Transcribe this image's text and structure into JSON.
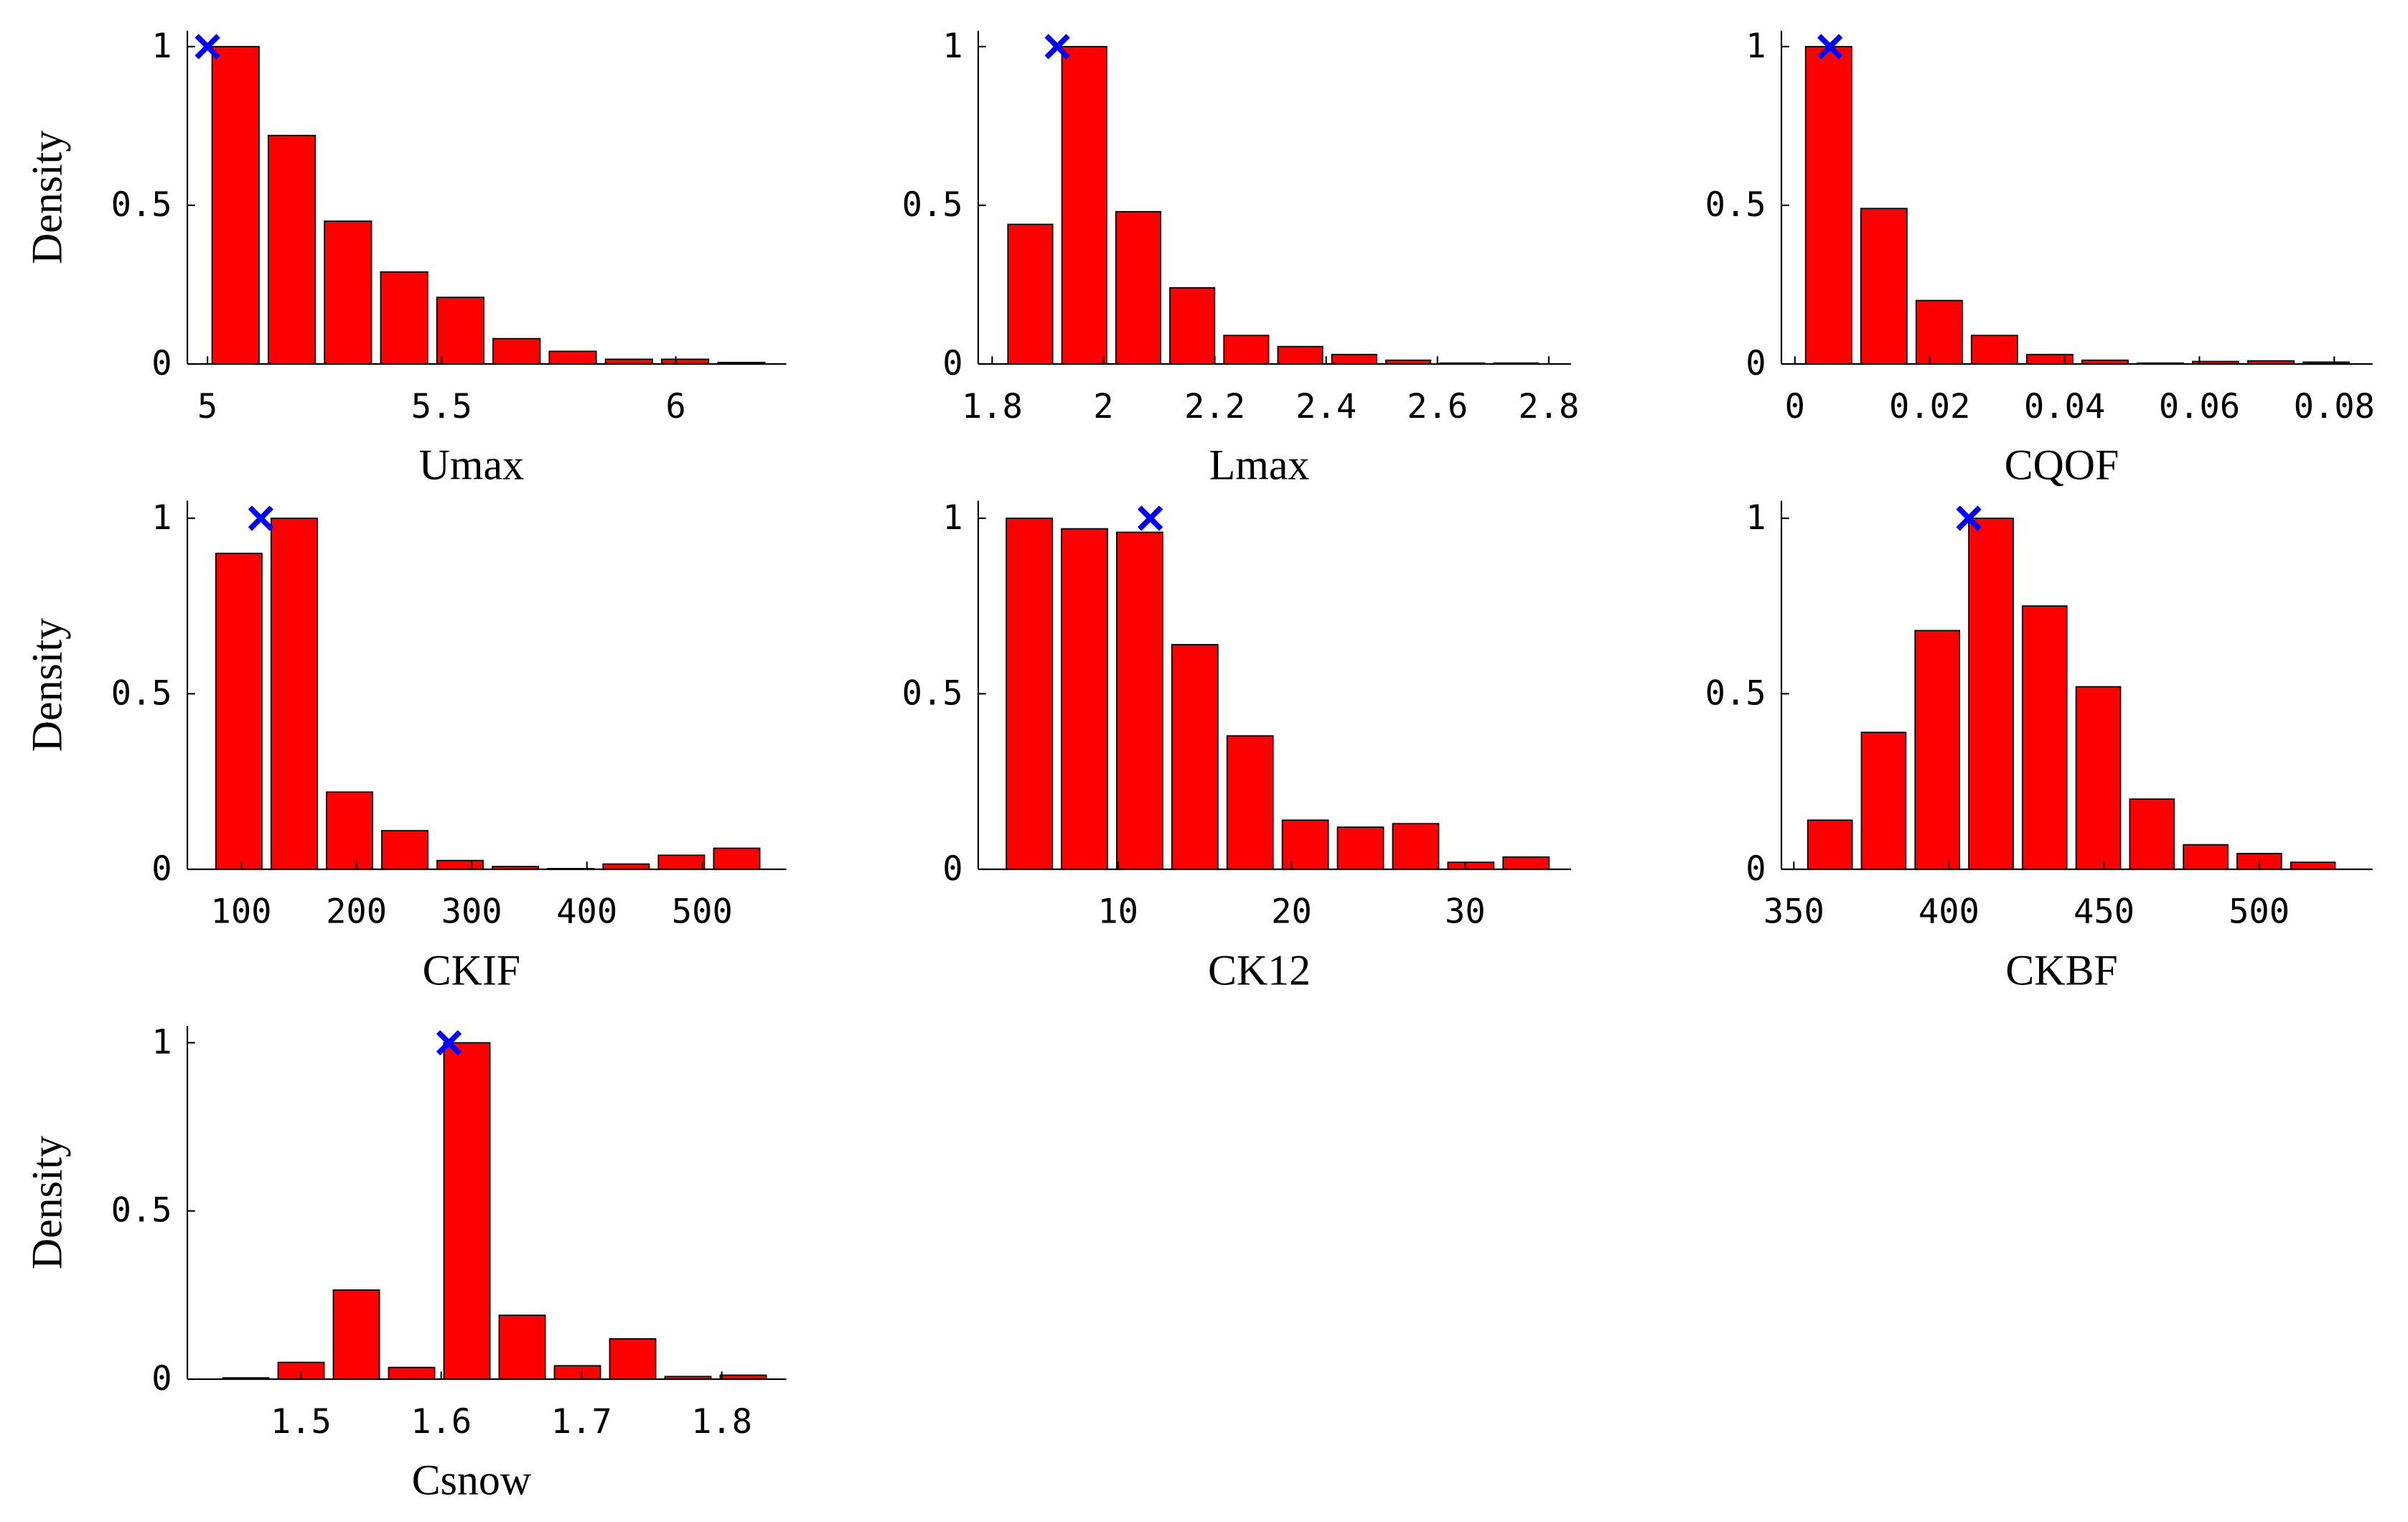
{
  "chart_data": [
    {
      "type": "histogram",
      "xlabel": "Umax",
      "ylabel": "Density",
      "color": "#ff0000",
      "marker_color": "#0000ff",
      "bins": [
        5,
        5.12,
        5.24,
        5.36,
        5.48,
        5.6,
        5.72,
        5.84,
        5.96,
        6.08,
        6.2
      ],
      "values": [
        1,
        0.72,
        0.45,
        0.29,
        0.21,
        0.08,
        0.04,
        0.015,
        0.015,
        0.005
      ],
      "marker": {
        "x": 5,
        "y": 1
      },
      "xlim": [
        4.957,
        6.236
      ],
      "ylim": [
        0,
        1.05
      ],
      "xticks": [
        5,
        5.5,
        6
      ],
      "yticks": [
        0,
        0.5,
        1
      ]
    },
    {
      "type": "histogram",
      "xlabel": "Lmax",
      "color": "#ff0000",
      "marker_color": "#0000ff",
      "bins": [
        1.82,
        1.917,
        2.014,
        2.111,
        2.208,
        2.305,
        2.402,
        2.499,
        2.596,
        2.693,
        2.79
      ],
      "values": [
        0.44,
        1,
        0.48,
        0.24,
        0.09,
        0.055,
        0.03,
        0.012,
        0.003,
        0.003
      ],
      "marker": {
        "x": 1.917,
        "y": 1
      },
      "xlim": [
        1.775,
        2.84
      ],
      "ylim": [
        0,
        1.05
      ],
      "xticks": [
        1.8,
        2,
        2.2,
        2.4,
        2.6,
        2.8
      ],
      "yticks": [
        0,
        0.5,
        1
      ]
    },
    {
      "type": "histogram",
      "xlabel": "CQOF",
      "color": "#ff0000",
      "marker_color": "#0000ff",
      "bins": [
        0.0009,
        0.0091,
        0.0173,
        0.0255,
        0.0337,
        0.0419,
        0.0501,
        0.0583,
        0.0665,
        0.0747,
        0.0829
      ],
      "values": [
        1,
        0.49,
        0.2,
        0.09,
        0.03,
        0.012,
        0.003,
        0.008,
        0.01,
        0.006
      ],
      "marker": {
        "x": 0.0052,
        "y": 1
      },
      "xlim": [
        -0.002,
        0.0857
      ],
      "ylim": [
        0,
        1.05
      ],
      "xticks": [
        0,
        0.02,
        0.04,
        0.06,
        0.08
      ],
      "yticks": [
        0,
        0.5,
        1
      ]
    },
    {
      "type": "histogram",
      "xlabel": "CKIF",
      "ylabel": "Density",
      "color": "#ff0000",
      "marker_color": "#0000ff",
      "bins": [
        74,
        122,
        170,
        218,
        266,
        314,
        362,
        410,
        458,
        506,
        554
      ],
      "values": [
        0.9,
        1,
        0.22,
        0.11,
        0.025,
        0.008,
        0.002,
        0.015,
        0.04,
        0.06
      ],
      "marker": {
        "x": 117,
        "y": 1
      },
      "xlim": [
        53.3,
        573
      ],
      "ylim": [
        0,
        1.05
      ],
      "xticks": [
        100,
        200,
        300,
        400,
        500
      ],
      "yticks": [
        0,
        0.5,
        1
      ]
    },
    {
      "type": "histogram",
      "xlabel": "CK12",
      "color": "#ff0000",
      "marker_color": "#0000ff",
      "bins": [
        3.3,
        6.48,
        9.66,
        12.84,
        16.02,
        19.2,
        22.38,
        25.56,
        28.74,
        31.92,
        35.1
      ],
      "values": [
        1,
        0.97,
        0.96,
        0.64,
        0.38,
        0.14,
        0.12,
        0.13,
        0.02,
        0.035
      ],
      "marker": {
        "x": 11.86,
        "y": 1
      },
      "xlim": [
        1.95,
        36.1
      ],
      "ylim": [
        0,
        1.05
      ],
      "xticks": [
        10,
        20,
        30
      ],
      "yticks": [
        0,
        0.5,
        1
      ]
    },
    {
      "type": "histogram",
      "xlabel": "CKBF",
      "color": "#ff0000",
      "marker_color": "#0000ff",
      "bins": [
        353,
        370.3,
        387.6,
        404.9,
        422.2,
        439.5,
        456.8,
        474.1,
        491.4,
        508.7,
        526
      ],
      "values": [
        0.14,
        0.39,
        0.68,
        1,
        0.75,
        0.52,
        0.2,
        0.07,
        0.045,
        0.02
      ],
      "marker": {
        "x": 406.4,
        "y": 1
      },
      "xlim": [
        346,
        536.6
      ],
      "ylim": [
        0,
        1.05
      ],
      "xticks": [
        350,
        400,
        450,
        500
      ],
      "yticks": [
        0,
        0.5,
        1
      ]
    },
    {
      "type": "histogram",
      "xlabel": "Csnow",
      "ylabel": "Density",
      "color": "#ff0000",
      "marker_color": "#0000ff",
      "bins": [
        1.441,
        1.4804,
        1.5198,
        1.5592,
        1.5986,
        1.638,
        1.6774,
        1.7168,
        1.7562,
        1.7956,
        1.835
      ],
      "values": [
        0.004,
        0.05,
        0.265,
        0.035,
        1,
        0.19,
        0.04,
        0.12,
        0.008,
        0.012
      ],
      "marker": {
        "x": 1.6055,
        "y": 1
      },
      "xlim": [
        1.419,
        1.846
      ],
      "ylim": [
        0,
        1.05
      ],
      "xticks": [
        1.5,
        1.6,
        1.7,
        1.8
      ],
      "yticks": [
        0,
        0.5,
        1
      ]
    }
  ]
}
